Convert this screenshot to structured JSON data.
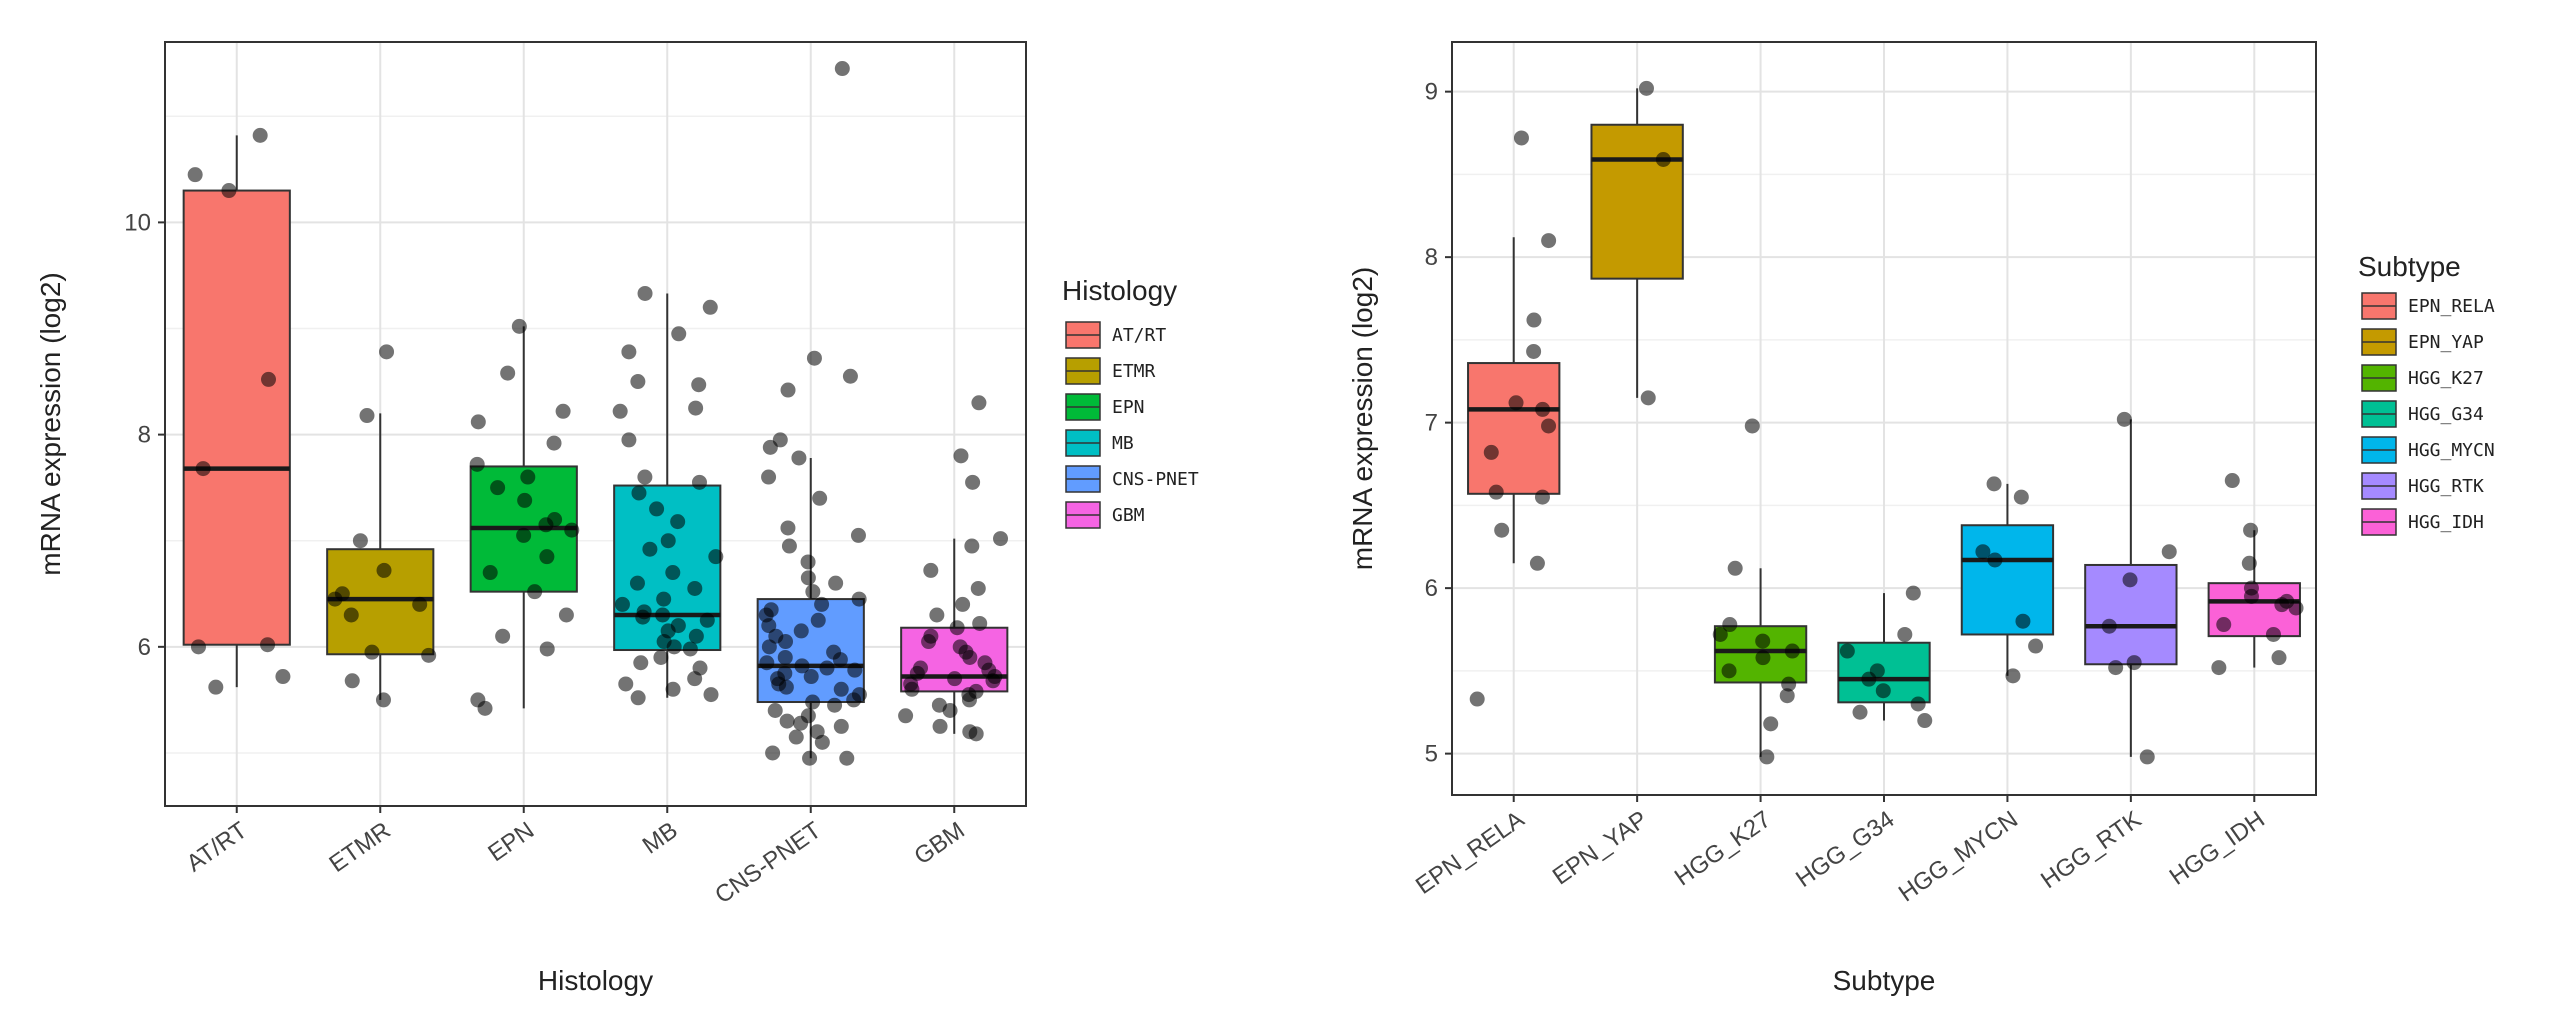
{
  "chart_data": [
    {
      "type": "boxplot",
      "xlabel": "Histology",
      "ylabel": "mRNA expression (log2)",
      "ylim": [
        4.5,
        11.7
      ],
      "yticks": [
        6,
        8,
        10
      ],
      "grid": true,
      "legend": {
        "title": "Histology",
        "position": "right"
      },
      "categories": [
        "AT/RT",
        "ETMR",
        "EPN",
        "MB",
        "CNS-PNET",
        "GBM"
      ],
      "colors": [
        "#F8766D",
        "#B79F00",
        "#00BA38",
        "#00BFC4",
        "#619CFF",
        "#F564E3"
      ],
      "boxes": [
        {
          "q1": 6.02,
          "median": 7.68,
          "q3": 10.3,
          "whisker_low": 5.62,
          "whisker_high": 10.82,
          "points": [
            10.82,
            10.45,
            10.3,
            8.52,
            7.68,
            6.02,
            6.0,
            5.72,
            5.62
          ]
        },
        {
          "q1": 5.93,
          "median": 6.45,
          "q3": 6.92,
          "whisker_low": 5.5,
          "whisker_high": 8.2,
          "points": [
            8.78,
            8.18,
            7.0,
            6.72,
            6.5,
            6.45,
            6.4,
            6.3,
            5.95,
            5.92,
            5.68,
            5.5
          ]
        },
        {
          "q1": 6.52,
          "median": 7.12,
          "q3": 7.7,
          "whisker_low": 5.42,
          "whisker_high": 9.02,
          "points": [
            9.02,
            8.58,
            8.22,
            8.12,
            7.92,
            7.72,
            7.6,
            7.5,
            7.38,
            7.2,
            7.15,
            7.1,
            7.05,
            6.85,
            6.7,
            6.52,
            6.3,
            6.1,
            5.98,
            5.5,
            5.42
          ]
        },
        {
          "q1": 5.97,
          "median": 6.3,
          "q3": 7.52,
          "whisker_low": 5.52,
          "whisker_high": 9.33,
          "points": [
            9.33,
            9.2,
            8.95,
            8.78,
            8.5,
            8.47,
            8.25,
            8.22,
            7.95,
            7.6,
            7.55,
            7.45,
            7.3,
            7.18,
            7.0,
            6.92,
            6.85,
            6.7,
            6.6,
            6.55,
            6.45,
            6.4,
            6.33,
            6.3,
            6.28,
            6.25,
            6.2,
            6.15,
            6.1,
            6.05,
            6.0,
            5.98,
            5.9,
            5.85,
            5.8,
            5.7,
            5.65,
            5.6,
            5.55,
            5.52
          ]
        },
        {
          "q1": 5.48,
          "median": 5.82,
          "q3": 6.45,
          "whisker_low": 4.95,
          "whisker_high": 7.78,
          "points": [
            11.45,
            8.72,
            8.55,
            8.42,
            7.95,
            7.88,
            7.78,
            7.6,
            7.4,
            7.12,
            7.05,
            6.95,
            6.8,
            6.65,
            6.6,
            6.52,
            6.45,
            6.4,
            6.35,
            6.3,
            6.25,
            6.2,
            6.15,
            6.1,
            6.05,
            6.0,
            5.95,
            5.9,
            5.88,
            5.85,
            5.82,
            5.8,
            5.78,
            5.75,
            5.72,
            5.7,
            5.65,
            5.62,
            5.6,
            5.55,
            5.5,
            5.48,
            5.45,
            5.4,
            5.35,
            5.3,
            5.28,
            5.25,
            5.2,
            5.15,
            5.1,
            5.0,
            4.95,
            4.95
          ]
        },
        {
          "q1": 5.58,
          "median": 5.72,
          "q3": 6.18,
          "whisker_low": 5.18,
          "whisker_high": 7.02,
          "points": [
            8.3,
            7.8,
            7.55,
            7.02,
            6.95,
            6.72,
            6.55,
            6.4,
            6.3,
            6.22,
            6.18,
            6.1,
            6.05,
            6.0,
            5.95,
            5.9,
            5.85,
            5.8,
            5.78,
            5.75,
            5.72,
            5.7,
            5.68,
            5.65,
            5.6,
            5.58,
            5.55,
            5.5,
            5.45,
            5.4,
            5.35,
            5.25,
            5.2,
            5.18
          ]
        }
      ]
    },
    {
      "type": "boxplot",
      "xlabel": "Subtype",
      "ylabel": "mRNA expression (log2)",
      "ylim": [
        4.75,
        9.3
      ],
      "yticks": [
        5,
        6,
        7,
        8,
        9
      ],
      "grid": true,
      "legend": {
        "title": "Subtype",
        "position": "right"
      },
      "categories": [
        "EPN_RELA",
        "EPN_YAP",
        "HGG_K27",
        "HGG_G34",
        "HGG_MYCN",
        "HGG_RTK",
        "HGG_IDH"
      ],
      "colors": [
        "#F8766D",
        "#C49A00",
        "#53B400",
        "#00C094",
        "#00B6EB",
        "#A58AFF",
        "#FB61D7"
      ],
      "boxes": [
        {
          "q1": 6.57,
          "median": 7.08,
          "q3": 7.36,
          "whisker_low": 6.15,
          "whisker_high": 8.12,
          "points": [
            8.72,
            8.1,
            7.62,
            7.43,
            7.12,
            7.08,
            6.98,
            6.82,
            6.58,
            6.55,
            6.35,
            6.15,
            5.33
          ]
        },
        {
          "q1": 7.87,
          "median": 8.59,
          "q3": 8.8,
          "whisker_low": 7.15,
          "whisker_high": 9.02,
          "points": [
            9.02,
            8.59,
            7.15
          ]
        },
        {
          "q1": 5.43,
          "median": 5.62,
          "q3": 5.77,
          "whisker_low": 4.98,
          "whisker_high": 6.12,
          "points": [
            6.98,
            6.12,
            5.78,
            5.72,
            5.68,
            5.62,
            5.58,
            5.5,
            5.42,
            5.35,
            5.18,
            4.98
          ]
        },
        {
          "q1": 5.31,
          "median": 5.45,
          "q3": 5.67,
          "whisker_low": 5.2,
          "whisker_high": 5.97,
          "points": [
            5.97,
            5.72,
            5.62,
            5.5,
            5.45,
            5.38,
            5.3,
            5.25,
            5.2
          ]
        },
        {
          "q1": 5.72,
          "median": 6.17,
          "q3": 6.38,
          "whisker_low": 5.47,
          "whisker_high": 6.63,
          "points": [
            6.63,
            6.55,
            6.22,
            6.17,
            5.8,
            5.65,
            5.47
          ]
        },
        {
          "q1": 5.54,
          "median": 5.77,
          "q3": 6.14,
          "whisker_low": 4.98,
          "whisker_high": 7.02,
          "points": [
            7.02,
            6.22,
            6.05,
            5.77,
            5.55,
            5.52,
            4.98
          ]
        },
        {
          "q1": 5.71,
          "median": 5.92,
          "q3": 6.03,
          "whisker_low": 5.52,
          "whisker_high": 6.35,
          "points": [
            6.65,
            6.35,
            6.15,
            6.0,
            5.95,
            5.92,
            5.9,
            5.88,
            5.78,
            5.72,
            5.58,
            5.52
          ]
        }
      ]
    }
  ]
}
